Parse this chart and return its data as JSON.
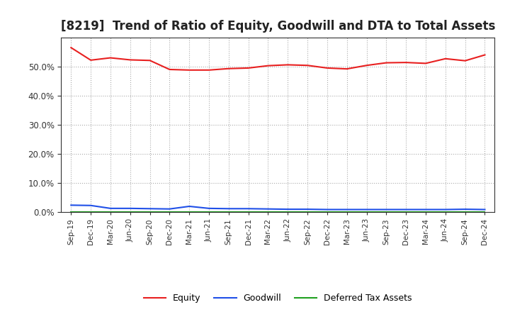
{
  "title": "[8219]  Trend of Ratio of Equity, Goodwill and DTA to Total Assets",
  "x_labels": [
    "Sep-19",
    "Dec-19",
    "Mar-20",
    "Jun-20",
    "Sep-20",
    "Dec-20",
    "Mar-21",
    "Jun-21",
    "Sep-21",
    "Dec-21",
    "Mar-22",
    "Jun-22",
    "Sep-22",
    "Dec-22",
    "Mar-23",
    "Jun-23",
    "Sep-23",
    "Dec-23",
    "Mar-24",
    "Jun-24",
    "Sep-24",
    "Dec-24"
  ],
  "equity": [
    0.565,
    0.522,
    0.53,
    0.523,
    0.521,
    0.49,
    0.488,
    0.488,
    0.493,
    0.495,
    0.503,
    0.506,
    0.504,
    0.495,
    0.492,
    0.504,
    0.513,
    0.514,
    0.511,
    0.527,
    0.52,
    0.54
  ],
  "goodwill": [
    0.024,
    0.023,
    0.013,
    0.013,
    0.012,
    0.011,
    0.02,
    0.013,
    0.012,
    0.012,
    0.011,
    0.01,
    0.01,
    0.009,
    0.009,
    0.009,
    0.009,
    0.009,
    0.009,
    0.009,
    0.01,
    0.009
  ],
  "dta": [
    0.001,
    0.001,
    0.001,
    0.001,
    0.001,
    0.001,
    0.001,
    0.001,
    0.001,
    0.001,
    0.001,
    0.001,
    0.001,
    0.001,
    0.001,
    0.001,
    0.001,
    0.001,
    0.001,
    0.001,
    0.001,
    0.001
  ],
  "equity_color": "#e82020",
  "goodwill_color": "#2050e8",
  "dta_color": "#20a020",
  "ylim": [
    0.0,
    0.6
  ],
  "yticks": [
    0.0,
    0.1,
    0.2,
    0.3,
    0.4,
    0.5
  ],
  "background_color": "#ffffff",
  "grid_color": "#aaaaaa",
  "title_fontsize": 12,
  "legend_labels": [
    "Equity",
    "Goodwill",
    "Deferred Tax Assets"
  ]
}
